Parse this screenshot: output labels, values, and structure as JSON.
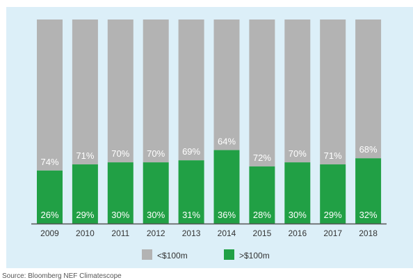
{
  "chart_data": {
    "type": "bar",
    "stacked": true,
    "normalized_percent": true,
    "categories": [
      "2009",
      "2010",
      "2011",
      "2012",
      "2013",
      "2014",
      "2015",
      "2016",
      "2017",
      "2018"
    ],
    "series": [
      {
        "name": "<$100m",
        "color": "#b3b3b3",
        "labels": [
          "74%",
          "71%",
          "70%",
          "70%",
          "69%",
          "64%",
          "72%",
          "70%",
          "71%",
          "68%"
        ],
        "values": [
          74,
          71,
          70,
          70,
          69,
          64,
          72,
          70,
          71,
          68
        ]
      },
      {
        "name": ">$100m",
        "color": "#21a045",
        "labels": [
          "26%",
          "29%",
          "30%",
          "30%",
          "31%",
          "36%",
          "28%",
          "30%",
          "29%",
          "32%"
        ],
        "values": [
          26,
          29,
          30,
          30,
          31,
          36,
          28,
          30,
          29,
          32
        ]
      }
    ],
    "ylim": [
      0,
      100
    ],
    "legend_position": "bottom-center",
    "grid": false,
    "title": "",
    "xlabel": "",
    "ylabel": ""
  },
  "source": "Source: Bloomberg NEF Climatescope",
  "colors": {
    "background": "#dceff8",
    "axis": "#555555",
    "label_text": "#ffffff"
  }
}
